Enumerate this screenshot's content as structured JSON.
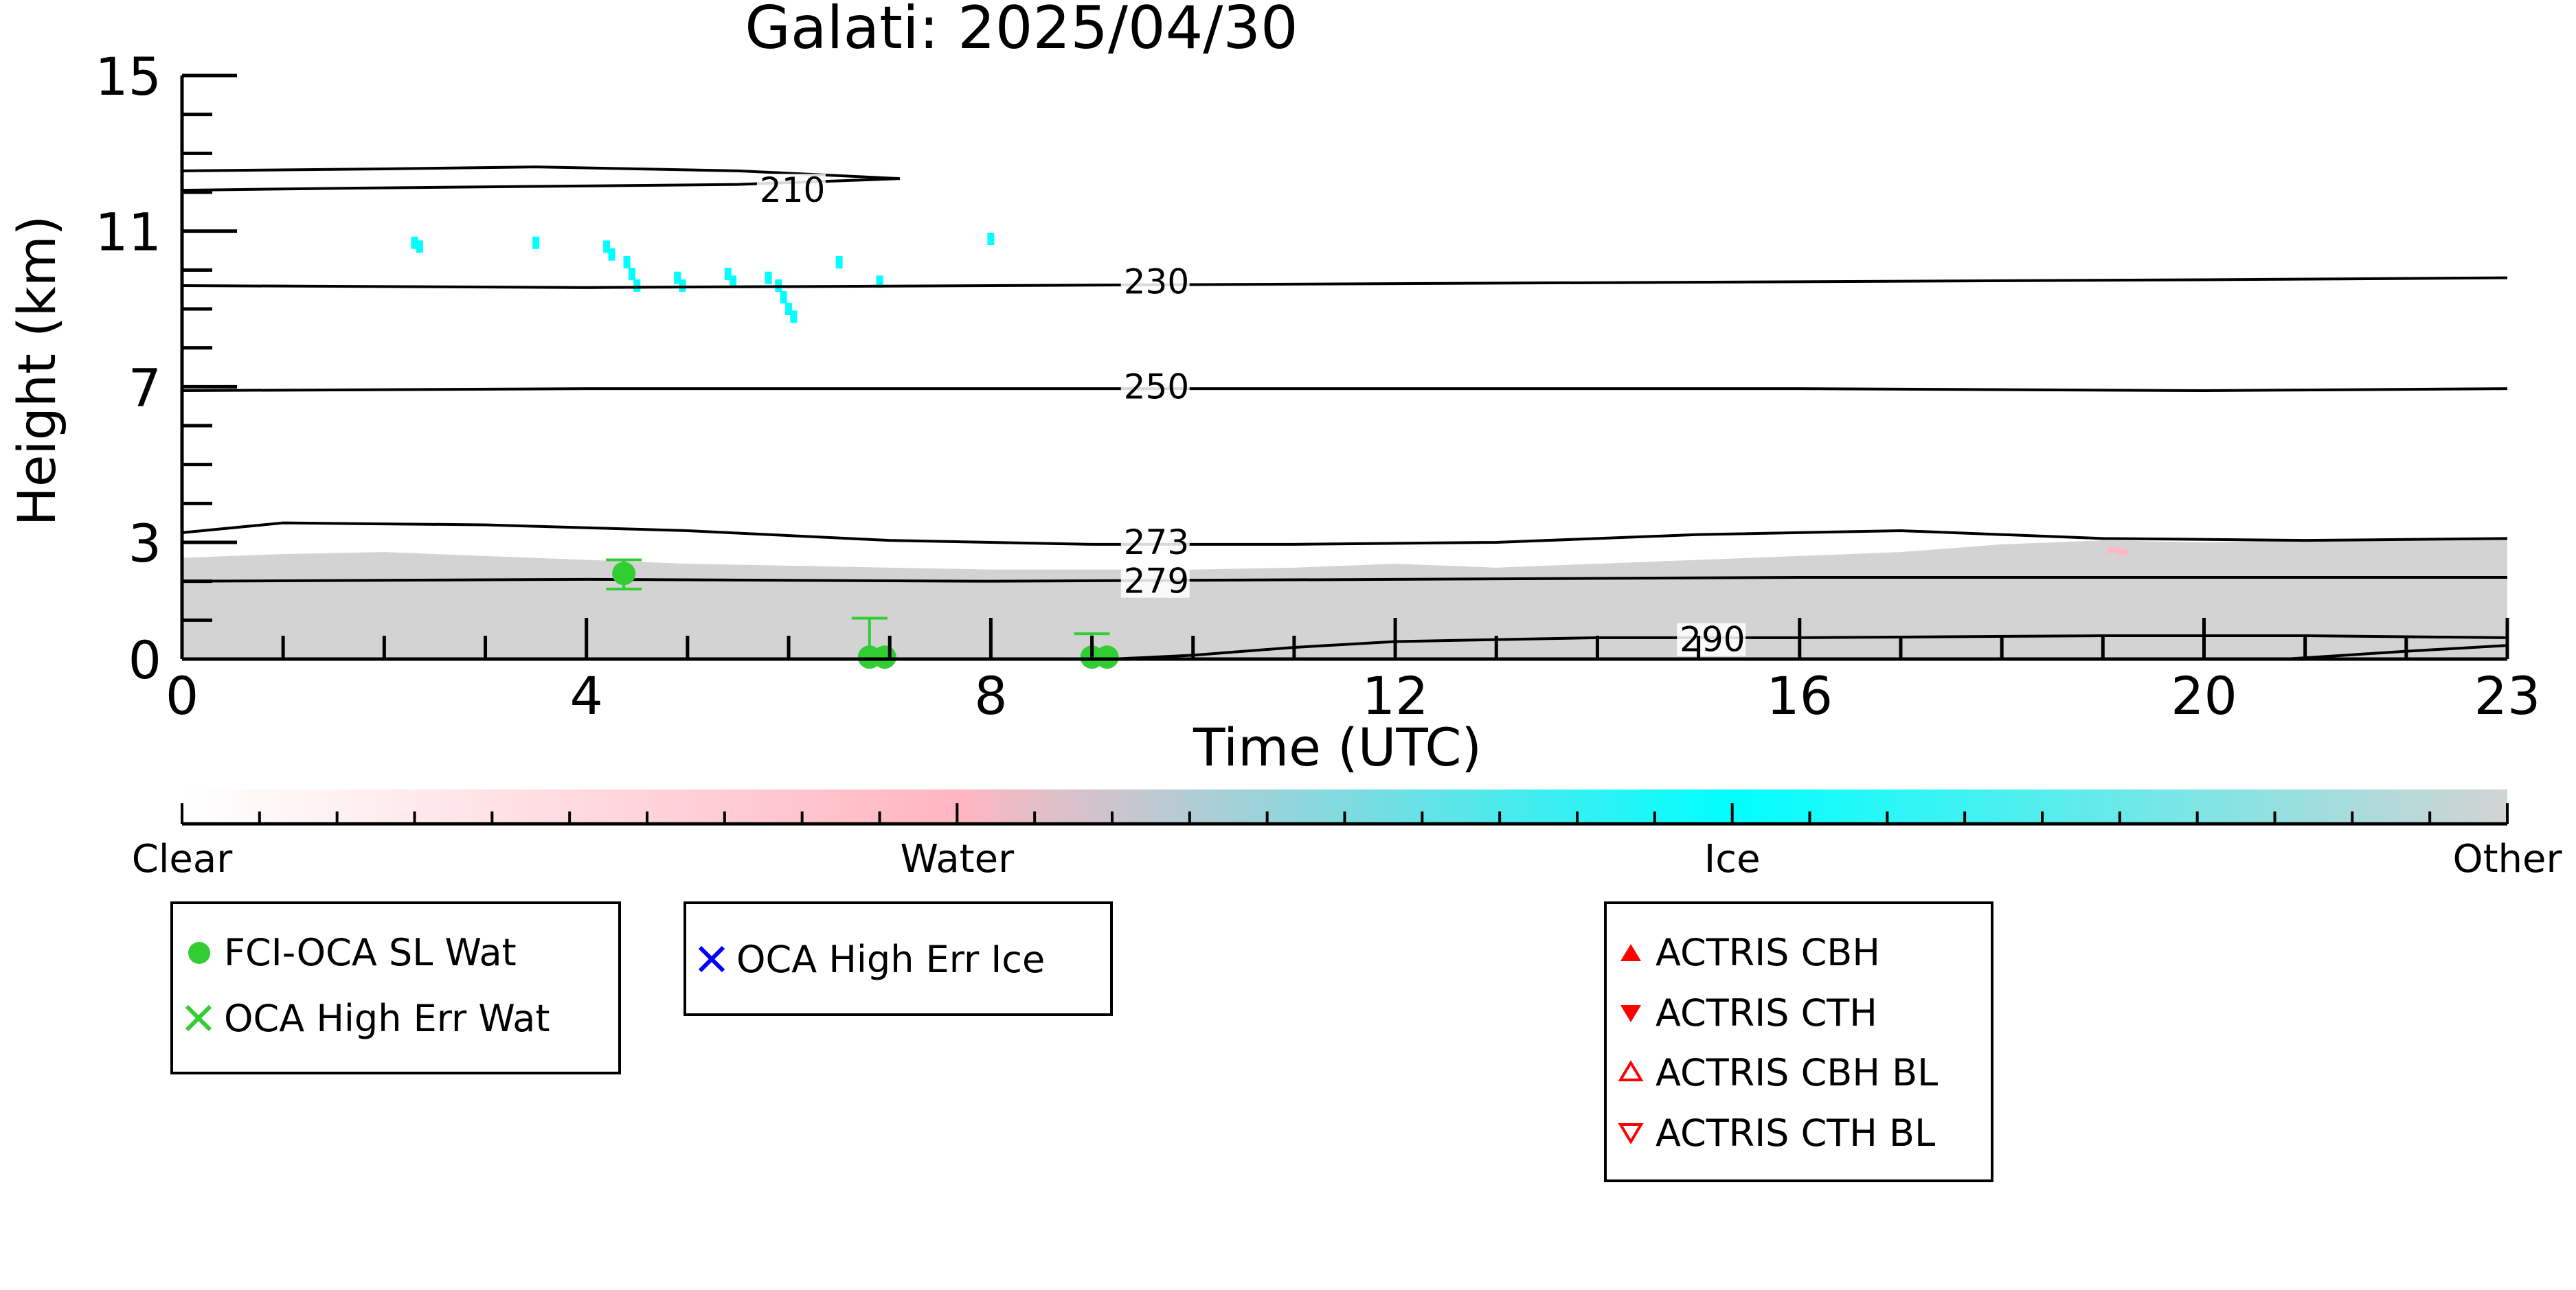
{
  "chart_data": {
    "type": "heatmap",
    "title": "Galati: 2025/04/30",
    "xlabel": "Time (UTC)",
    "ylabel": "Height (km)",
    "xlim": [
      0,
      23
    ],
    "ylim": [
      0,
      15
    ],
    "x_ticks": [
      0,
      4,
      8,
      12,
      16,
      20,
      23
    ],
    "y_ticks": [
      0,
      3,
      7,
      11,
      15
    ],
    "grid": false,
    "colors": {
      "clear": "#ffffff",
      "water": "#ffb6c1",
      "ice": "#00ffff",
      "other": "#d3d3d3",
      "fci_wat": "#32cd32",
      "oca_ice": "#0000ff",
      "actris": "#ff0000"
    },
    "colorbar": {
      "labels": [
        "Clear",
        "Water",
        "Ice",
        "Other"
      ],
      "positions": [
        0,
        1,
        2,
        3
      ]
    },
    "other_layer_top_km": [
      [
        0,
        2.6
      ],
      [
        1,
        2.7
      ],
      [
        2,
        2.75
      ],
      [
        3,
        2.65
      ],
      [
        4,
        2.55
      ],
      [
        5,
        2.45
      ],
      [
        6,
        2.4
      ],
      [
        7,
        2.35
      ],
      [
        8,
        2.3
      ],
      [
        9,
        2.3
      ],
      [
        10,
        2.3
      ],
      [
        11,
        2.35
      ],
      [
        12,
        2.45
      ],
      [
        13,
        2.35
      ],
      [
        14,
        2.45
      ],
      [
        15,
        2.55
      ],
      [
        16,
        2.65
      ],
      [
        17,
        2.75
      ],
      [
        18,
        2.95
      ],
      [
        19,
        3.05
      ],
      [
        20,
        3.0
      ],
      [
        21,
        3.05
      ],
      [
        22,
        3.1
      ],
      [
        23,
        3.1
      ]
    ],
    "ice_points": [
      [
        2.3,
        10.7
      ],
      [
        2.35,
        10.6
      ],
      [
        3.5,
        10.7
      ],
      [
        4.2,
        10.6
      ],
      [
        4.25,
        10.4
      ],
      [
        4.4,
        10.2
      ],
      [
        4.45,
        9.9
      ],
      [
        4.5,
        9.6
      ],
      [
        4.9,
        9.8
      ],
      [
        4.95,
        9.6
      ],
      [
        5.4,
        9.9
      ],
      [
        5.45,
        9.7
      ],
      [
        5.8,
        9.8
      ],
      [
        5.9,
        9.6
      ],
      [
        5.95,
        9.3
      ],
      [
        6.0,
        9.0
      ],
      [
        6.05,
        8.8
      ],
      [
        6.5,
        10.2
      ],
      [
        6.9,
        9.7
      ],
      [
        8.0,
        10.8
      ]
    ],
    "water_points": [
      [
        19.1,
        2.8
      ],
      [
        19.2,
        2.75
      ]
    ],
    "contours": [
      {
        "level": "210",
        "points": [
          [
            0,
            12.55
          ],
          [
            2,
            12.6
          ],
          [
            3.5,
            12.65
          ],
          [
            5.5,
            12.55
          ],
          [
            7.1,
            12.35
          ],
          [
            5.5,
            12.2
          ],
          [
            3.5,
            12.15
          ],
          [
            1.5,
            12.1
          ],
          [
            0,
            12.05
          ]
        ],
        "label_at": [
          5.7,
          12.05
        ]
      },
      {
        "level": "230",
        "points": [
          [
            0,
            9.6
          ],
          [
            4,
            9.55
          ],
          [
            8,
            9.6
          ],
          [
            12,
            9.65
          ],
          [
            16,
            9.7
          ],
          [
            20,
            9.75
          ],
          [
            23,
            9.8
          ]
        ],
        "label_at": [
          9.3,
          9.7
        ]
      },
      {
        "level": "250",
        "points": [
          [
            0,
            6.9
          ],
          [
            4,
            6.95
          ],
          [
            8,
            6.95
          ],
          [
            12,
            6.95
          ],
          [
            16,
            6.95
          ],
          [
            20,
            6.9
          ],
          [
            23,
            6.95
          ]
        ],
        "label_at": [
          9.3,
          7.0
        ]
      },
      {
        "level": "273",
        "points": [
          [
            0,
            3.25
          ],
          [
            1,
            3.5
          ],
          [
            3,
            3.45
          ],
          [
            5,
            3.3
          ],
          [
            7,
            3.05
          ],
          [
            9,
            2.95
          ],
          [
            11,
            2.95
          ],
          [
            13,
            3.0
          ],
          [
            15,
            3.2
          ],
          [
            17,
            3.3
          ],
          [
            19,
            3.1
          ],
          [
            21,
            3.05
          ],
          [
            23,
            3.1
          ]
        ],
        "label_at": [
          9.3,
          3.0
        ]
      },
      {
        "level": "279",
        "points": [
          [
            0,
            2.0
          ],
          [
            4,
            2.05
          ],
          [
            8,
            2.0
          ],
          [
            12,
            2.05
          ],
          [
            16,
            2.1
          ],
          [
            20,
            2.1
          ],
          [
            23,
            2.1
          ]
        ],
        "label_at": [
          9.3,
          2.0
        ]
      },
      {
        "level": "290",
        "points": [
          [
            9.2,
            0
          ],
          [
            10,
            0.1
          ],
          [
            11,
            0.3
          ],
          [
            12,
            0.45
          ],
          [
            14,
            0.55
          ],
          [
            16,
            0.55
          ],
          [
            19,
            0.6
          ],
          [
            21,
            0.6
          ],
          [
            23,
            0.55
          ]
        ],
        "label_at": [
          14.8,
          0.5
        ]
      },
      {
        "level": "",
        "points": [
          [
            20.8,
            0
          ],
          [
            22,
            0.2
          ],
          [
            23,
            0.35
          ]
        ],
        "label_at": null
      }
    ],
    "fci_oca_sl_wat": [
      {
        "t": 4.37,
        "h": 2.2,
        "err_low": 1.8,
        "err_high": 2.55
      },
      {
        "t": 6.8,
        "h": 0.05,
        "err_low": 0.0,
        "err_high": 1.05
      },
      {
        "t": 6.95,
        "h": 0.05,
        "err_low": 0.0,
        "err_high": 0.0
      },
      {
        "t": 9.0,
        "h": 0.05,
        "err_low": 0.0,
        "err_high": 0.65
      },
      {
        "t": 9.15,
        "h": 0.05,
        "err_low": 0.0,
        "err_high": 0.0
      }
    ],
    "legends": {
      "box1": [
        "FCI-OCA SL Wat",
        "OCA High Err Wat"
      ],
      "box2": [
        "OCA High Err Ice"
      ],
      "box3": [
        "ACTRIS CBH",
        "ACTRIS CTH",
        "ACTRIS CBH BL",
        "ACTRIS CTH BL"
      ]
    }
  }
}
